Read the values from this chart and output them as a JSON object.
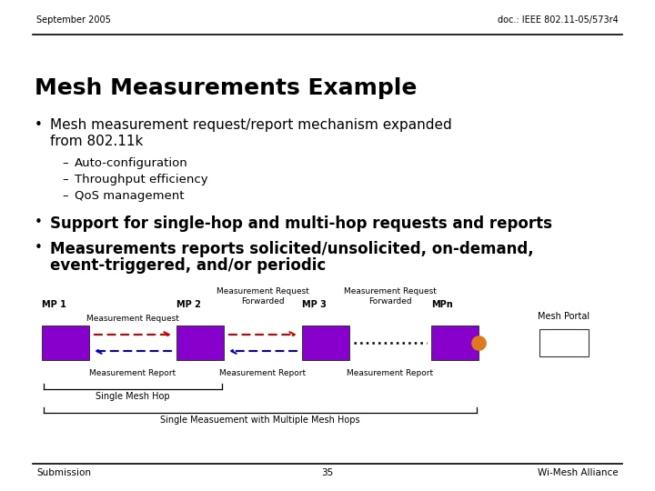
{
  "bg_color": "#ffffff",
  "header_left": "September 2005",
  "header_right": "doc.: IEEE 802.11-05/573r4",
  "title": "Mesh Measurements Example",
  "bullet1_line1": "Mesh measurement request/report mechanism expanded",
  "bullet1_line2": "from 802.11k",
  "sub_bullets": [
    "Auto-configuration",
    "Throughput efficiency",
    "QoS management"
  ],
  "bullet2": "Support for single-hop and multi-hop requests and reports",
  "bullet3_line1": "Measurements reports solicited/unsolicited, on-demand,",
  "bullet3_line2": "event-triggered, and/or periodic",
  "footer_left": "Submission",
  "footer_center": "35",
  "footer_right": "Wi-Mesh Alliance",
  "box_color": "#8800cc",
  "arrow_req_color": "#cc0000",
  "arrow_rep_color": "#0000cc",
  "orange_dot_color": "#e07820",
  "mp_labels": [
    "MP 1",
    "MP 2",
    "MP 3",
    "MPn"
  ],
  "mesh_portal_label": "Mesh Portal",
  "req_label_1": "Measurement Request",
  "req_label_23": "Measurement Request\nForwarded",
  "rep_label": "Measurement Report",
  "single_hop_label": "Single Mesh Hop",
  "multi_hop_label": "Single Measuement with Multiple Mesh Hops"
}
